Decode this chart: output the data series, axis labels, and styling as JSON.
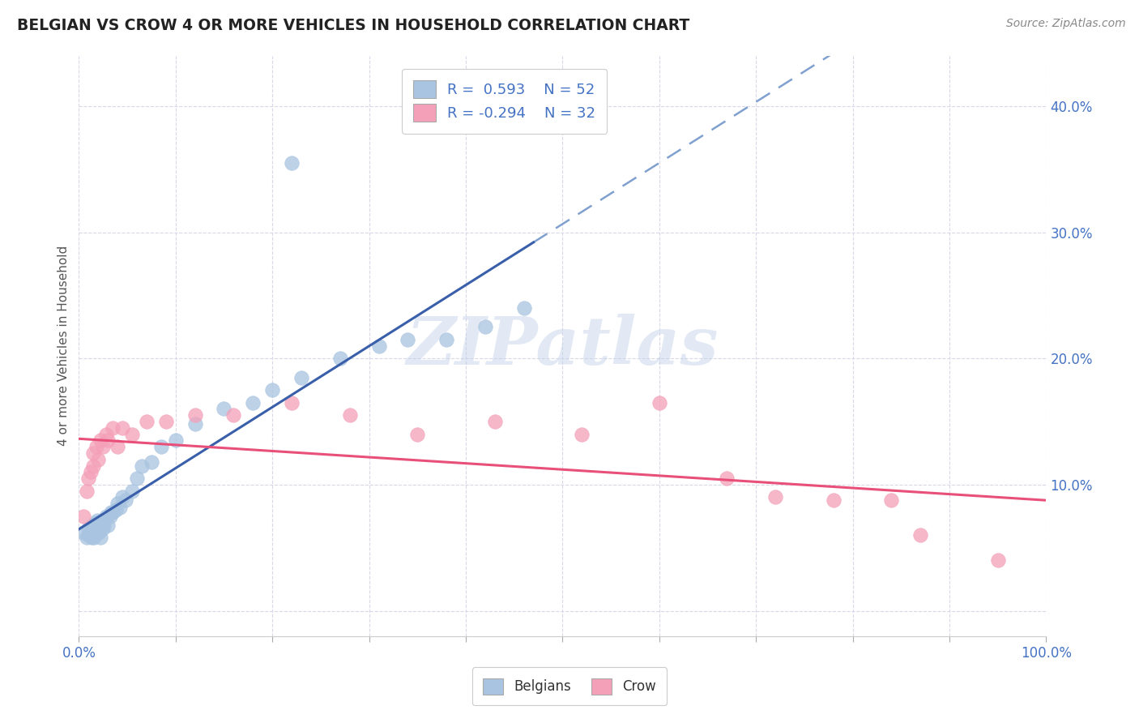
{
  "title": "BELGIAN VS CROW 4 OR MORE VEHICLES IN HOUSEHOLD CORRELATION CHART",
  "source": "Source: ZipAtlas.com",
  "xlabel": "",
  "ylabel": "4 or more Vehicles in Household",
  "xlim": [
    0.0,
    1.0
  ],
  "ylim": [
    -0.02,
    0.44
  ],
  "xticks": [
    0.0,
    0.1,
    0.2,
    0.3,
    0.4,
    0.5,
    0.6,
    0.7,
    0.8,
    0.9,
    1.0
  ],
  "xticklabels": [
    "0.0%",
    "",
    "",
    "",
    "",
    "",
    "",
    "",
    "",
    "",
    "100.0%"
  ],
  "yticks": [
    0.0,
    0.1,
    0.2,
    0.3,
    0.4
  ],
  "yticklabels": [
    "",
    "10.0%",
    "20.0%",
    "30.0%",
    "40.0%"
  ],
  "belgian_color": "#a8c4e0",
  "crow_color": "#f4a0b8",
  "belgian_line_color": "#3a5faa",
  "crow_line_color": "#e8507a",
  "watermark": "ZIPatlas",
  "legend_R_belgian": "0.593",
  "legend_N_belgian": "52",
  "legend_R_crow": "-0.294",
  "legend_N_crow": "32",
  "belgian_points_x": [
    0.005,
    0.008,
    0.01,
    0.01,
    0.012,
    0.013,
    0.014,
    0.015,
    0.015,
    0.016,
    0.017,
    0.018,
    0.018,
    0.019,
    0.02,
    0.02,
    0.021,
    0.022,
    0.022,
    0.023,
    0.024,
    0.025,
    0.025,
    0.026,
    0.028,
    0.03,
    0.032,
    0.033,
    0.035,
    0.038,
    0.04,
    0.042,
    0.045,
    0.048,
    0.055,
    0.06,
    0.065,
    0.075,
    0.085,
    0.1,
    0.12,
    0.15,
    0.18,
    0.2,
    0.23,
    0.27,
    0.31,
    0.34,
    0.38,
    0.42,
    0.46,
    0.22
  ],
  "belgian_points_y": [
    0.062,
    0.058,
    0.065,
    0.06,
    0.062,
    0.058,
    0.068,
    0.06,
    0.065,
    0.058,
    0.07,
    0.062,
    0.068,
    0.072,
    0.065,
    0.068,
    0.062,
    0.07,
    0.058,
    0.068,
    0.072,
    0.07,
    0.065,
    0.068,
    0.075,
    0.068,
    0.075,
    0.078,
    0.078,
    0.08,
    0.085,
    0.082,
    0.09,
    0.088,
    0.095,
    0.105,
    0.115,
    0.118,
    0.13,
    0.135,
    0.148,
    0.16,
    0.165,
    0.175,
    0.185,
    0.2,
    0.21,
    0.215,
    0.215,
    0.225,
    0.24,
    0.355
  ],
  "crow_points_x": [
    0.005,
    0.008,
    0.01,
    0.012,
    0.015,
    0.015,
    0.018,
    0.02,
    0.022,
    0.025,
    0.028,
    0.03,
    0.035,
    0.04,
    0.045,
    0.055,
    0.07,
    0.09,
    0.12,
    0.16,
    0.22,
    0.28,
    0.35,
    0.43,
    0.52,
    0.6,
    0.67,
    0.72,
    0.78,
    0.84,
    0.87,
    0.95
  ],
  "crow_points_y": [
    0.075,
    0.095,
    0.105,
    0.11,
    0.115,
    0.125,
    0.13,
    0.12,
    0.135,
    0.13,
    0.14,
    0.135,
    0.145,
    0.13,
    0.145,
    0.14,
    0.15,
    0.15,
    0.155,
    0.155,
    0.165,
    0.155,
    0.14,
    0.15,
    0.14,
    0.165,
    0.105,
    0.09,
    0.088,
    0.088,
    0.06,
    0.04
  ],
  "dashed_line_color": "#80a0d0",
  "background_color": "#ffffff",
  "plot_bg_color": "#ffffff",
  "grid_color": "#d8d8e8",
  "title_color": "#222222",
  "tick_label_color": "#4472c4"
}
